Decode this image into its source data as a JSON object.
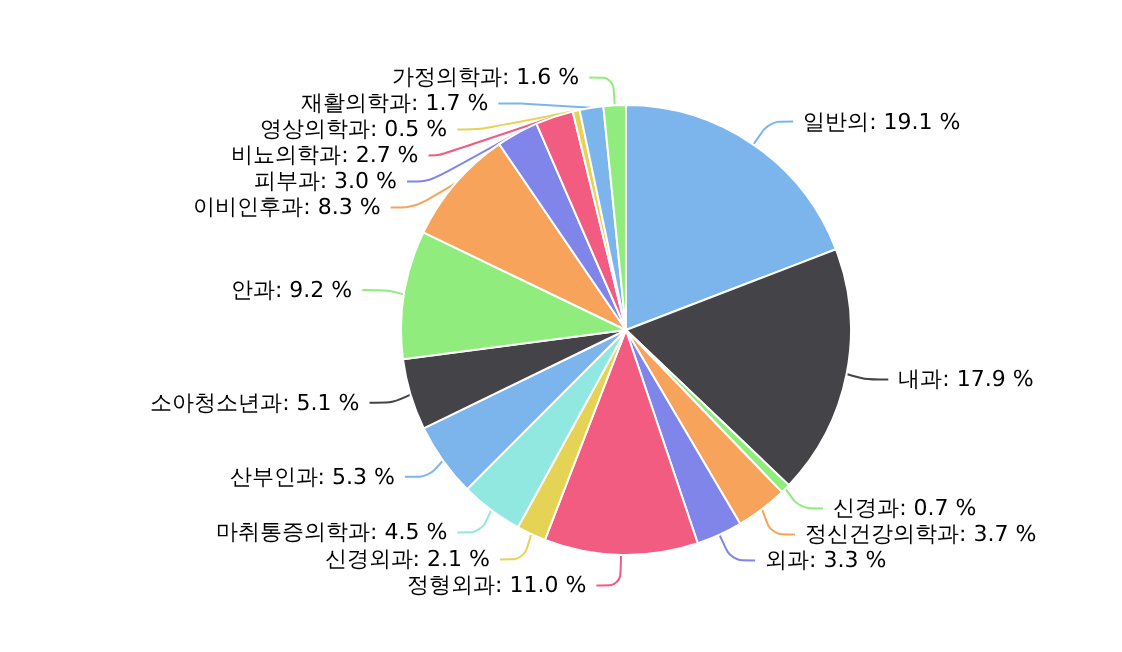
{
  "chart_data": {
    "type": "pie",
    "categories": [
      "일반의",
      "내과",
      "신경과",
      "정신건강의학과",
      "외과",
      "정형외과",
      "신경외과",
      "마취통증의학과",
      "산부인과",
      "소아청소년과",
      "안과",
      "이비인후과",
      "피부과",
      "비뇨의학과",
      "영상의학과",
      "재활의학과",
      "가정의학과"
    ],
    "values": [
      19.1,
      17.9,
      0.7,
      3.7,
      3.3,
      11.0,
      2.1,
      4.5,
      5.3,
      5.1,
      9.2,
      8.3,
      3.0,
      2.7,
      0.5,
      1.7,
      1.6
    ],
    "value_labels": [
      "19.1 %",
      "17.9 %",
      "0.7 %",
      "3.7 %",
      "3.3 %",
      "11.0 %",
      "2.1 %",
      "4.5 %",
      "5.3 %",
      "5.1 %",
      "9.2 %",
      "8.3 %",
      "3.0 %",
      "2.7 %",
      "0.5 %",
      "1.7 %",
      "1.6 %"
    ],
    "colors": [
      "#7cb5ec",
      "#434348",
      "#90ed7d",
      "#f7a35c",
      "#8085e9",
      "#f15c80",
      "#e4d354",
      "#91e8e1",
      "#7cb5ec",
      "#434348",
      "#90ed7d",
      "#f7a35c",
      "#8085e9",
      "#f15c80",
      "#e4d354",
      "#7cb5ec",
      "#90ed7d"
    ],
    "legend": false
  }
}
